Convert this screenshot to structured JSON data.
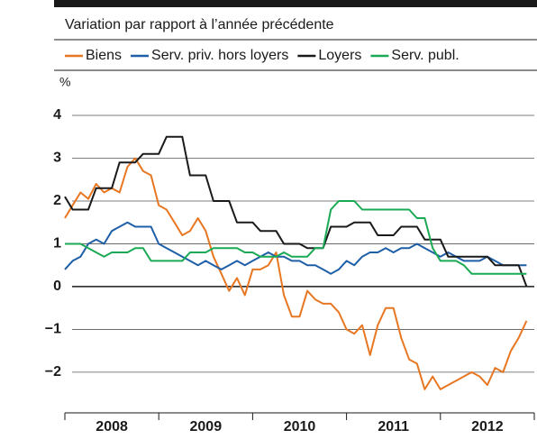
{
  "chart_data": {
    "type": "line",
    "subtitle": "Variation par rapport à l’année précédente",
    "y_unit": "%",
    "x": [
      2008,
      2008.083,
      2008.167,
      2008.25,
      2008.333,
      2008.417,
      2008.5,
      2008.583,
      2008.667,
      2008.75,
      2008.833,
      2008.917,
      2009,
      2009.083,
      2009.167,
      2009.25,
      2009.333,
      2009.417,
      2009.5,
      2009.583,
      2009.667,
      2009.75,
      2009.833,
      2009.917,
      2010,
      2010.083,
      2010.167,
      2010.25,
      2010.333,
      2010.417,
      2010.5,
      2010.583,
      2010.667,
      2010.75,
      2010.833,
      2010.917,
      2011,
      2011.083,
      2011.167,
      2011.25,
      2011.333,
      2011.417,
      2011.5,
      2011.583,
      2011.667,
      2011.75,
      2011.833,
      2011.917,
      2012,
      2012.083,
      2012.167,
      2012.25,
      2012.333,
      2012.417,
      2012.5,
      2012.583,
      2012.667,
      2012.75,
      2012.833,
      2012.917
    ],
    "xlim": [
      2008,
      2013
    ],
    "xticks": [
      2008,
      2009,
      2010,
      2011,
      2012,
      2013
    ],
    "x_labels": [
      "2008",
      "2009",
      "2010",
      "2011",
      "2012"
    ],
    "ylim": [
      -2.95,
      4.35
    ],
    "yticks": [
      4,
      3,
      2,
      1,
      0,
      {
        "value": -1,
        "label": "−1"
      },
      {
        "value": -2,
        "label": "−2"
      }
    ],
    "grid": true,
    "series": [
      {
        "name": "Biens",
        "color": "#e87722",
        "values": [
          1.6,
          1.9,
          2.2,
          2.05,
          2.4,
          2.2,
          2.3,
          2.2,
          2.8,
          3.0,
          2.7,
          2.6,
          1.9,
          1.8,
          1.5,
          1.2,
          1.3,
          1.6,
          1.3,
          0.7,
          0.3,
          -0.1,
          0.2,
          -0.2,
          0.4,
          0.4,
          0.5,
          0.8,
          -0.2,
          -0.7,
          -0.7,
          -0.1,
          -0.3,
          -0.4,
          -0.4,
          -0.6,
          -1.0,
          -1.1,
          -0.9,
          -1.6,
          -0.9,
          -0.5,
          -0.5,
          -1.2,
          -1.7,
          -1.8,
          -2.4,
          -2.1,
          -2.4,
          -2.3,
          -2.2,
          -2.1,
          -2.0,
          -2.1,
          -2.3,
          -1.9,
          -2.0,
          -1.5,
          -1.2,
          -0.8
        ]
      },
      {
        "name": "Serv. priv. hors loyers",
        "color": "#1f5fa8",
        "values": [
          0.4,
          0.6,
          0.7,
          1.0,
          1.1,
          1.0,
          1.3,
          1.4,
          1.5,
          1.4,
          1.4,
          1.4,
          1.0,
          0.9,
          0.8,
          0.7,
          0.6,
          0.5,
          0.6,
          0.5,
          0.4,
          0.5,
          0.6,
          0.5,
          0.6,
          0.7,
          0.8,
          0.7,
          0.7,
          0.6,
          0.6,
          0.5,
          0.5,
          0.4,
          0.3,
          0.4,
          0.6,
          0.5,
          0.7,
          0.8,
          0.8,
          0.9,
          0.8,
          0.9,
          0.9,
          1.0,
          0.9,
          0.8,
          0.7,
          0.8,
          0.7,
          0.6,
          0.6,
          0.6,
          0.7,
          0.6,
          0.5,
          0.5,
          0.5,
          0.5
        ]
      },
      {
        "name": "Loyers",
        "color": "#1a1a1a",
        "values": [
          2.1,
          1.8,
          1.8,
          1.8,
          2.3,
          2.3,
          2.3,
          2.9,
          2.9,
          2.9,
          3.1,
          3.1,
          3.1,
          3.5,
          3.5,
          3.5,
          2.6,
          2.6,
          2.6,
          2.0,
          2.0,
          2.0,
          1.5,
          1.5,
          1.5,
          1.3,
          1.3,
          1.3,
          1.0,
          1.0,
          1.0,
          0.9,
          0.9,
          0.9,
          1.4,
          1.4,
          1.4,
          1.5,
          1.5,
          1.5,
          1.2,
          1.2,
          1.2,
          1.4,
          1.4,
          1.4,
          1.1,
          1.1,
          1.1,
          0.7,
          0.7,
          0.7,
          0.7,
          0.7,
          0.7,
          0.5,
          0.5,
          0.5,
          0.5,
          0.0
        ]
      },
      {
        "name": "Serv. publ.",
        "color": "#1aaa55",
        "values": [
          1.0,
          1.0,
          1.0,
          0.9,
          0.8,
          0.7,
          0.8,
          0.8,
          0.8,
          0.9,
          0.9,
          0.6,
          0.6,
          0.6,
          0.6,
          0.6,
          0.8,
          0.8,
          0.8,
          0.9,
          0.9,
          0.9,
          0.9,
          0.8,
          0.8,
          0.7,
          0.7,
          0.7,
          0.8,
          0.7,
          0.7,
          0.7,
          0.9,
          0.9,
          1.8,
          2.0,
          2.0,
          2.0,
          1.8,
          1.8,
          1.8,
          1.8,
          1.8,
          1.8,
          1.8,
          1.6,
          1.6,
          0.9,
          0.6,
          0.6,
          0.6,
          0.5,
          0.3,
          0.3,
          0.3,
          0.3,
          0.3,
          0.3,
          0.3,
          0.3
        ]
      }
    ]
  }
}
